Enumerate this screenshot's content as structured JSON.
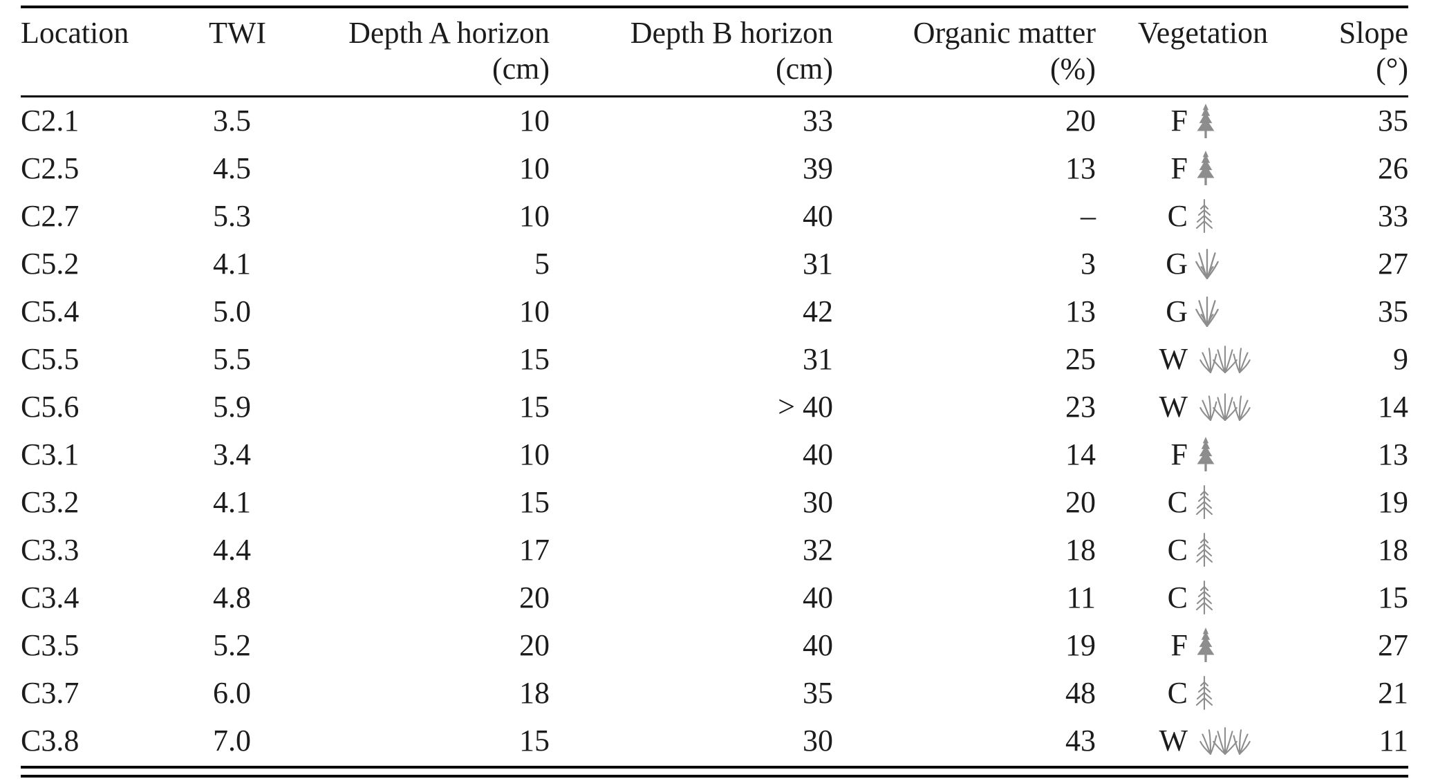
{
  "page": {
    "background": "#ffffff",
    "text_color": "#1c1c1c",
    "rule_color": "#000000",
    "icon_color": "#8d8d8d"
  },
  "table": {
    "columns": [
      {
        "label": "Location",
        "unit": ""
      },
      {
        "label": "TWI",
        "unit": ""
      },
      {
        "label": "Depth A horizon",
        "unit": "(cm)"
      },
      {
        "label": "Depth B horizon",
        "unit": "(cm)"
      },
      {
        "label": "Organic matter",
        "unit": "(%)"
      },
      {
        "label": "Vegetation",
        "unit": ""
      },
      {
        "label": "Slope",
        "unit": "(°)"
      }
    ],
    "rows": [
      {
        "location": "C2.1",
        "twi": "3.5",
        "depth_a": "10",
        "depth_b": "33",
        "organic_matter": "20",
        "veg_code": "F",
        "veg_icon": "fir-tree-icon",
        "slope": "35"
      },
      {
        "location": "C2.5",
        "twi": "4.5",
        "depth_a": "10",
        "depth_b": "39",
        "organic_matter": "13",
        "veg_code": "F",
        "veg_icon": "fir-tree-icon",
        "slope": "26"
      },
      {
        "location": "C2.7",
        "twi": "5.3",
        "depth_a": "10",
        "depth_b": "40",
        "organic_matter": "–",
        "veg_code": "C",
        "veg_icon": "conifer-sapling-icon",
        "slope": "33"
      },
      {
        "location": "C5.2",
        "twi": "4.1",
        "depth_a": "5",
        "depth_b": "31",
        "organic_matter": "3",
        "veg_code": "G",
        "veg_icon": "grass-tuft-icon",
        "slope": "27"
      },
      {
        "location": "C5.4",
        "twi": "5.0",
        "depth_a": "10",
        "depth_b": "42",
        "organic_matter": "13",
        "veg_code": "G",
        "veg_icon": "grass-tuft-icon",
        "slope": "35"
      },
      {
        "location": "C5.5",
        "twi": "5.5",
        "depth_a": "15",
        "depth_b": "31",
        "organic_matter": "25",
        "veg_code": "W",
        "veg_icon": "marsh-grass-icon",
        "slope": "9"
      },
      {
        "location": "C5.6",
        "twi": "5.9",
        "depth_a": "15",
        "depth_b": "> 40",
        "organic_matter": "23",
        "veg_code": "W",
        "veg_icon": "marsh-grass-icon",
        "slope": "14"
      },
      {
        "location": "C3.1",
        "twi": "3.4",
        "depth_a": "10",
        "depth_b": "40",
        "organic_matter": "14",
        "veg_code": "F",
        "veg_icon": "fir-tree-icon",
        "slope": "13"
      },
      {
        "location": "C3.2",
        "twi": "4.1",
        "depth_a": "15",
        "depth_b": "30",
        "organic_matter": "20",
        "veg_code": "C",
        "veg_icon": "conifer-sapling-icon",
        "slope": "19"
      },
      {
        "location": "C3.3",
        "twi": "4.4",
        "depth_a": "17",
        "depth_b": "32",
        "organic_matter": "18",
        "veg_code": "C",
        "veg_icon": "conifer-sapling-icon",
        "slope": "18"
      },
      {
        "location": "C3.4",
        "twi": "4.8",
        "depth_a": "20",
        "depth_b": "40",
        "organic_matter": "11",
        "veg_code": "C",
        "veg_icon": "conifer-sapling-icon",
        "slope": "15"
      },
      {
        "location": "C3.5",
        "twi": "5.2",
        "depth_a": "20",
        "depth_b": "40",
        "organic_matter": "19",
        "veg_code": "F",
        "veg_icon": "fir-tree-icon",
        "slope": "27"
      },
      {
        "location": "C3.7",
        "twi": "6.0",
        "depth_a": "18",
        "depth_b": "35",
        "organic_matter": "48",
        "veg_code": "C",
        "veg_icon": "conifer-sapling-icon",
        "slope": "21"
      },
      {
        "location": "C3.8",
        "twi": "7.0",
        "depth_a": "15",
        "depth_b": "30",
        "organic_matter": "43",
        "veg_code": "W",
        "veg_icon": "marsh-grass-icon",
        "slope": "11"
      }
    ]
  }
}
